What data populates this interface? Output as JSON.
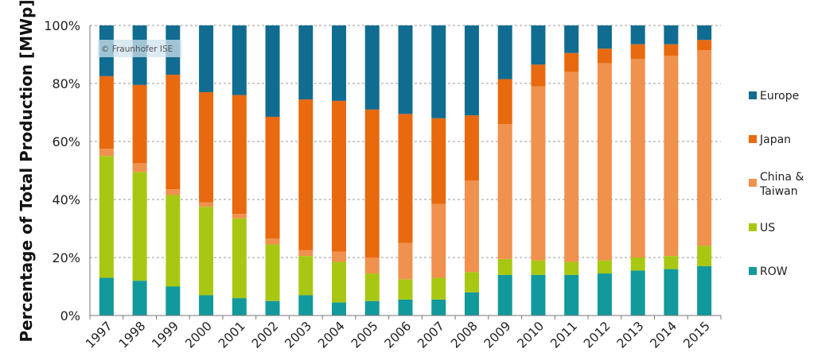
{
  "chart_data": {
    "type": "bar",
    "stacked": true,
    "title": "",
    "xlabel": "",
    "ylabel": "Percentage of Total Production [MWp]",
    "ylim": [
      0,
      100
    ],
    "ytick_labels": [
      "0%",
      "20%",
      "40%",
      "60%",
      "80%",
      "100%"
    ],
    "yticks": [
      0,
      20,
      40,
      60,
      80,
      100
    ],
    "grid": true,
    "legend_position": "right",
    "watermark": "© Fraunhofer ISE",
    "categories": [
      "1997",
      "1998",
      "1999",
      "2000",
      "2001",
      "2002",
      "2003",
      "2004",
      "2005",
      "2006",
      "2007",
      "2008",
      "2009",
      "2010",
      "2011",
      "2012",
      "2013",
      "2014",
      "2015"
    ],
    "series": [
      {
        "name": "ROW",
        "color": "#12999c",
        "values": [
          13,
          12,
          10,
          7,
          6,
          5,
          7,
          4.5,
          5,
          5.5,
          5.5,
          8,
          14,
          14,
          14,
          14.5,
          15.5,
          16,
          17
        ]
      },
      {
        "name": "US",
        "color": "#a8c712",
        "values": [
          42,
          37.5,
          31.5,
          30.5,
          27.5,
          19.5,
          13.5,
          14,
          9.5,
          7,
          7.5,
          7,
          5.5,
          5,
          4.5,
          4.5,
          4.5,
          4.5,
          7
        ]
      },
      {
        "name": "China & Taiwan",
        "color": "#f0914e",
        "values": [
          2.5,
          3,
          2,
          1.5,
          1.5,
          2,
          2,
          3.5,
          5.5,
          12.5,
          25.5,
          31.5,
          46.5,
          60,
          65.5,
          68,
          68.5,
          69,
          67.5
        ]
      },
      {
        "name": "Japan",
        "color": "#e8690e",
        "values": [
          25,
          27,
          39.5,
          38,
          41,
          42,
          52,
          52,
          51,
          44.5,
          29.5,
          22.5,
          15.5,
          7.5,
          6.5,
          5,
          5,
          4,
          3.5
        ]
      },
      {
        "name": "Europe",
        "color": "#116c91",
        "values": [
          17.5,
          20.5,
          17,
          23,
          24,
          31.5,
          25.5,
          26,
          29,
          30.5,
          32,
          31,
          18.5,
          13.5,
          9.5,
          8,
          6.5,
          6.5,
          5
        ]
      }
    ],
    "legend_order": [
      "Europe",
      "Japan",
      "China & Taiwan",
      "US",
      "ROW"
    ]
  }
}
